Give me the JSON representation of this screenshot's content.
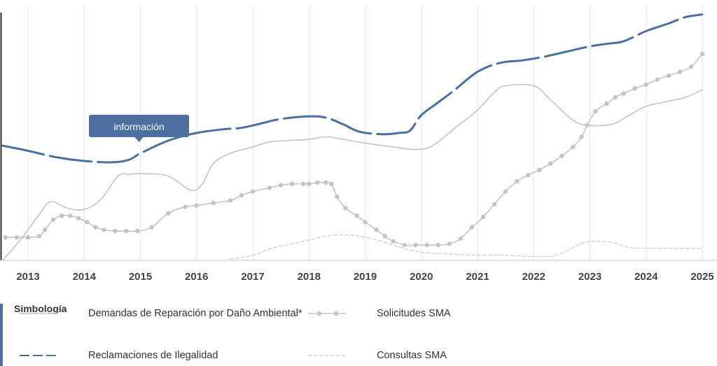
{
  "chart_data": {
    "type": "line",
    "x_ticks": [
      "2013",
      "2014",
      "2015",
      "2016",
      "2017",
      "2018",
      "2019",
      "2020",
      "2021",
      "2022",
      "2023",
      "2024",
      "2025"
    ],
    "xlim": [
      2012.55,
      2025.2
    ],
    "ylim": [
      0,
      100
    ],
    "grid": "vertical",
    "tooltip": {
      "label": "información",
      "x": 2015.0,
      "series": 0
    },
    "legend": {
      "title": "Simbología",
      "items": [
        {
          "label": "Demandas de Reparación por Daño Ambiental*",
          "series": 1
        },
        {
          "label": "Solicitudes SMA",
          "series": 2
        },
        {
          "label": "Reclamaciones de Ilegalidad",
          "series": 0
        },
        {
          "label": "Consultas SMA",
          "series": 3
        }
      ]
    },
    "series": [
      {
        "name": "Reclamaciones de Ilegalidad",
        "color": "#4a6fa0",
        "style": "dashed-thick",
        "points": [
          [
            2012.55,
            45
          ],
          [
            2013.0,
            43
          ],
          [
            2013.5,
            40.5
          ],
          [
            2014.0,
            39
          ],
          [
            2014.5,
            38.5
          ],
          [
            2014.8,
            39.5
          ],
          [
            2015.0,
            42
          ],
          [
            2015.5,
            47
          ],
          [
            2016.0,
            50
          ],
          [
            2016.5,
            51.5
          ],
          [
            2016.8,
            52
          ],
          [
            2017.2,
            54
          ],
          [
            2017.5,
            55.5
          ],
          [
            2018.0,
            56.5
          ],
          [
            2018.3,
            56
          ],
          [
            2018.6,
            53.5
          ],
          [
            2018.9,
            50.5
          ],
          [
            2019.3,
            49.5
          ],
          [
            2019.6,
            50
          ],
          [
            2019.8,
            51
          ],
          [
            2020.0,
            57
          ],
          [
            2020.3,
            62
          ],
          [
            2020.6,
            67
          ],
          [
            2021.0,
            74
          ],
          [
            2021.4,
            77.5
          ],
          [
            2021.8,
            78.5
          ],
          [
            2022.2,
            80
          ],
          [
            2022.6,
            82
          ],
          [
            2023.0,
            84
          ],
          [
            2023.3,
            85
          ],
          [
            2023.6,
            86
          ],
          [
            2024.0,
            90
          ],
          [
            2024.4,
            93
          ],
          [
            2024.7,
            95.5
          ],
          [
            2025.0,
            96.5
          ]
        ]
      },
      {
        "name": "Demandas de Reparación por Daño Ambiental*",
        "color": "#c4c4c4",
        "style": "solid",
        "points": [
          [
            2012.55,
            0
          ],
          [
            2012.9,
            9
          ],
          [
            2013.2,
            18
          ],
          [
            2013.4,
            23
          ],
          [
            2013.7,
            20.5
          ],
          [
            2014.0,
            20
          ],
          [
            2014.3,
            24
          ],
          [
            2014.6,
            33
          ],
          [
            2014.8,
            33.8
          ],
          [
            2015.1,
            34
          ],
          [
            2015.5,
            33
          ],
          [
            2015.9,
            27.5
          ],
          [
            2016.1,
            30
          ],
          [
            2016.3,
            38
          ],
          [
            2016.6,
            42
          ],
          [
            2017.0,
            44.5
          ],
          [
            2017.3,
            46.5
          ],
          [
            2017.6,
            47
          ],
          [
            2018.0,
            47.5
          ],
          [
            2018.3,
            48.5
          ],
          [
            2018.6,
            47.5
          ],
          [
            2019.0,
            46
          ],
          [
            2019.5,
            44.5
          ],
          [
            2019.9,
            43.5
          ],
          [
            2020.2,
            45
          ],
          [
            2020.6,
            52
          ],
          [
            2021.0,
            59
          ],
          [
            2021.3,
            66
          ],
          [
            2021.5,
            68.5
          ],
          [
            2022.0,
            68.5
          ],
          [
            2022.3,
            63
          ],
          [
            2022.7,
            55
          ],
          [
            2023.0,
            53
          ],
          [
            2023.4,
            53.5
          ],
          [
            2023.7,
            57
          ],
          [
            2024.0,
            60.5
          ],
          [
            2024.3,
            62
          ],
          [
            2024.7,
            64
          ],
          [
            2025.0,
            67
          ]
        ]
      },
      {
        "name": "Solicitudes SMA",
        "color": "#c4c4c4",
        "style": "solid-markers",
        "points": [
          [
            2012.6,
            9
          ],
          [
            2012.8,
            9
          ],
          [
            2013.0,
            9
          ],
          [
            2013.2,
            9.5
          ],
          [
            2013.3,
            12
          ],
          [
            2013.45,
            16
          ],
          [
            2013.6,
            17.5
          ],
          [
            2013.75,
            17.5
          ],
          [
            2013.9,
            16.5
          ],
          [
            2014.05,
            15
          ],
          [
            2014.2,
            13
          ],
          [
            2014.35,
            12
          ],
          [
            2014.55,
            11.5
          ],
          [
            2014.75,
            11.5
          ],
          [
            2014.95,
            11.5
          ],
          [
            2015.2,
            13
          ],
          [
            2015.5,
            18.5
          ],
          [
            2015.8,
            21
          ],
          [
            2016.0,
            21.5
          ],
          [
            2016.3,
            22.5
          ],
          [
            2016.6,
            23.5
          ],
          [
            2016.8,
            25.5
          ],
          [
            2017.0,
            27
          ],
          [
            2017.3,
            28.5
          ],
          [
            2017.5,
            29.5
          ],
          [
            2017.7,
            30
          ],
          [
            2017.9,
            30
          ],
          [
            2018.0,
            30
          ],
          [
            2018.15,
            30.5
          ],
          [
            2018.3,
            30.5
          ],
          [
            2018.4,
            30
          ],
          [
            2018.5,
            25
          ],
          [
            2018.65,
            20.5
          ],
          [
            2018.85,
            17.5
          ],
          [
            2019.0,
            15
          ],
          [
            2019.2,
            12
          ],
          [
            2019.35,
            9.5
          ],
          [
            2019.5,
            7.5
          ],
          [
            2019.7,
            6
          ],
          [
            2019.9,
            6
          ],
          [
            2020.1,
            6
          ],
          [
            2020.3,
            6
          ],
          [
            2020.5,
            6.5
          ],
          [
            2020.7,
            8.5
          ],
          [
            2020.9,
            13
          ],
          [
            2021.1,
            17
          ],
          [
            2021.3,
            22
          ],
          [
            2021.5,
            27
          ],
          [
            2021.7,
            31
          ],
          [
            2021.9,
            33.5
          ],
          [
            2022.1,
            35.5
          ],
          [
            2022.3,
            38
          ],
          [
            2022.5,
            41
          ],
          [
            2022.7,
            44.5
          ],
          [
            2022.85,
            48.5
          ],
          [
            2022.95,
            53
          ],
          [
            2023.1,
            58.5
          ],
          [
            2023.3,
            61.5
          ],
          [
            2023.45,
            64
          ],
          [
            2023.6,
            65.5
          ],
          [
            2023.8,
            67.5
          ],
          [
            2024.0,
            69
          ],
          [
            2024.2,
            71
          ],
          [
            2024.4,
            72.5
          ],
          [
            2024.6,
            74
          ],
          [
            2024.8,
            76
          ],
          [
            2025.0,
            81
          ]
        ]
      },
      {
        "name": "Consultas SMA",
        "color": "#cfcfcf",
        "style": "dashed-thin",
        "points": [
          [
            2016.6,
            0.5
          ],
          [
            2017.0,
            2
          ],
          [
            2017.3,
            4.5
          ],
          [
            2017.7,
            6.5
          ],
          [
            2018.0,
            8
          ],
          [
            2018.3,
            9.5
          ],
          [
            2018.6,
            10
          ],
          [
            2018.9,
            9.5
          ],
          [
            2019.2,
            8
          ],
          [
            2019.5,
            6
          ],
          [
            2019.8,
            4
          ],
          [
            2020.1,
            3
          ],
          [
            2020.5,
            2.5
          ],
          [
            2021.0,
            2
          ],
          [
            2021.5,
            2
          ],
          [
            2022.0,
            1.5
          ],
          [
            2022.4,
            2
          ],
          [
            2022.7,
            5
          ],
          [
            2022.9,
            7
          ],
          [
            2023.1,
            7.5
          ],
          [
            2023.4,
            7
          ],
          [
            2023.7,
            5
          ],
          [
            2024.0,
            4.8
          ],
          [
            2024.5,
            4.7
          ],
          [
            2025.0,
            4.7
          ]
        ]
      }
    ]
  }
}
